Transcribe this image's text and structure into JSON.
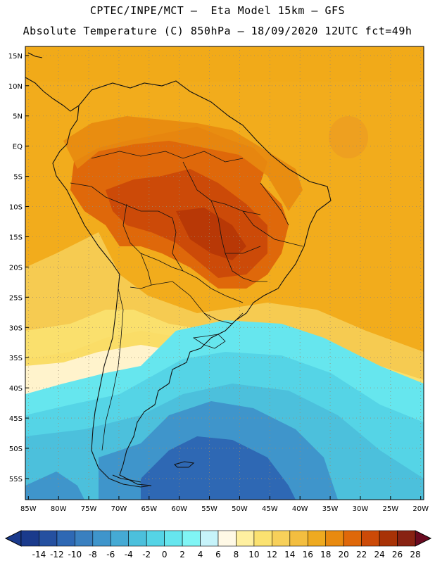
{
  "header": {
    "line1": "CPTEC/INPE/MCT –  Eta Model 15km – GFS",
    "line2": "Absolute Temperature (C) 850hPa – 18/09/2020 12UTC fct=49h"
  },
  "map": {
    "lat_ticks": [
      "15N",
      "10N",
      "5N",
      "EQ",
      "5S",
      "10S",
      "15S",
      "20S",
      "25S",
      "30S",
      "35S",
      "40S",
      "45S",
      "50S",
      "55S"
    ],
    "lon_ticks": [
      "85W",
      "80W",
      "75W",
      "70W",
      "65W",
      "60W",
      "55W",
      "50W",
      "45W",
      "40W",
      "35W",
      "30W",
      "25W",
      "20W"
    ],
    "lon_range": [
      -85.5,
      -19.5
    ],
    "lat_range": [
      16.5,
      -58.5
    ]
  },
  "colorbar": {
    "labels": [
      "-14",
      "-12",
      "-10",
      "-8",
      "-6",
      "-4",
      "-2",
      "0",
      "2",
      "4",
      "6",
      "8",
      "10",
      "12",
      "14",
      "16",
      "18",
      "20",
      "22",
      "24",
      "26",
      "28"
    ],
    "colors": [
      "#1a3a8c",
      "#2550a0",
      "#2e68b4",
      "#3a80c0",
      "#3f95cb",
      "#45aad4",
      "#4cc0dc",
      "#55d4e6",
      "#66e6ee",
      "#80f5f5",
      "#c6f3fa",
      "#fff9e6",
      "#fff0a0",
      "#fbe270",
      "#f7d05a",
      "#f3be40",
      "#eeaa20",
      "#e88a10",
      "#df680a",
      "#cc4a08",
      "#a83206",
      "#882212",
      "#6a0a20"
    ]
  },
  "fields": {
    "ocean_warm": "#f2ac1c",
    "land_hot": "#d8620c",
    "land_very_hot": "#c04a08",
    "ocean_cool": "#5ad0e0",
    "ocean_cold": "#3a80c0",
    "land_mild": "#f7d05a",
    "land_pale": "#fff3cc"
  }
}
